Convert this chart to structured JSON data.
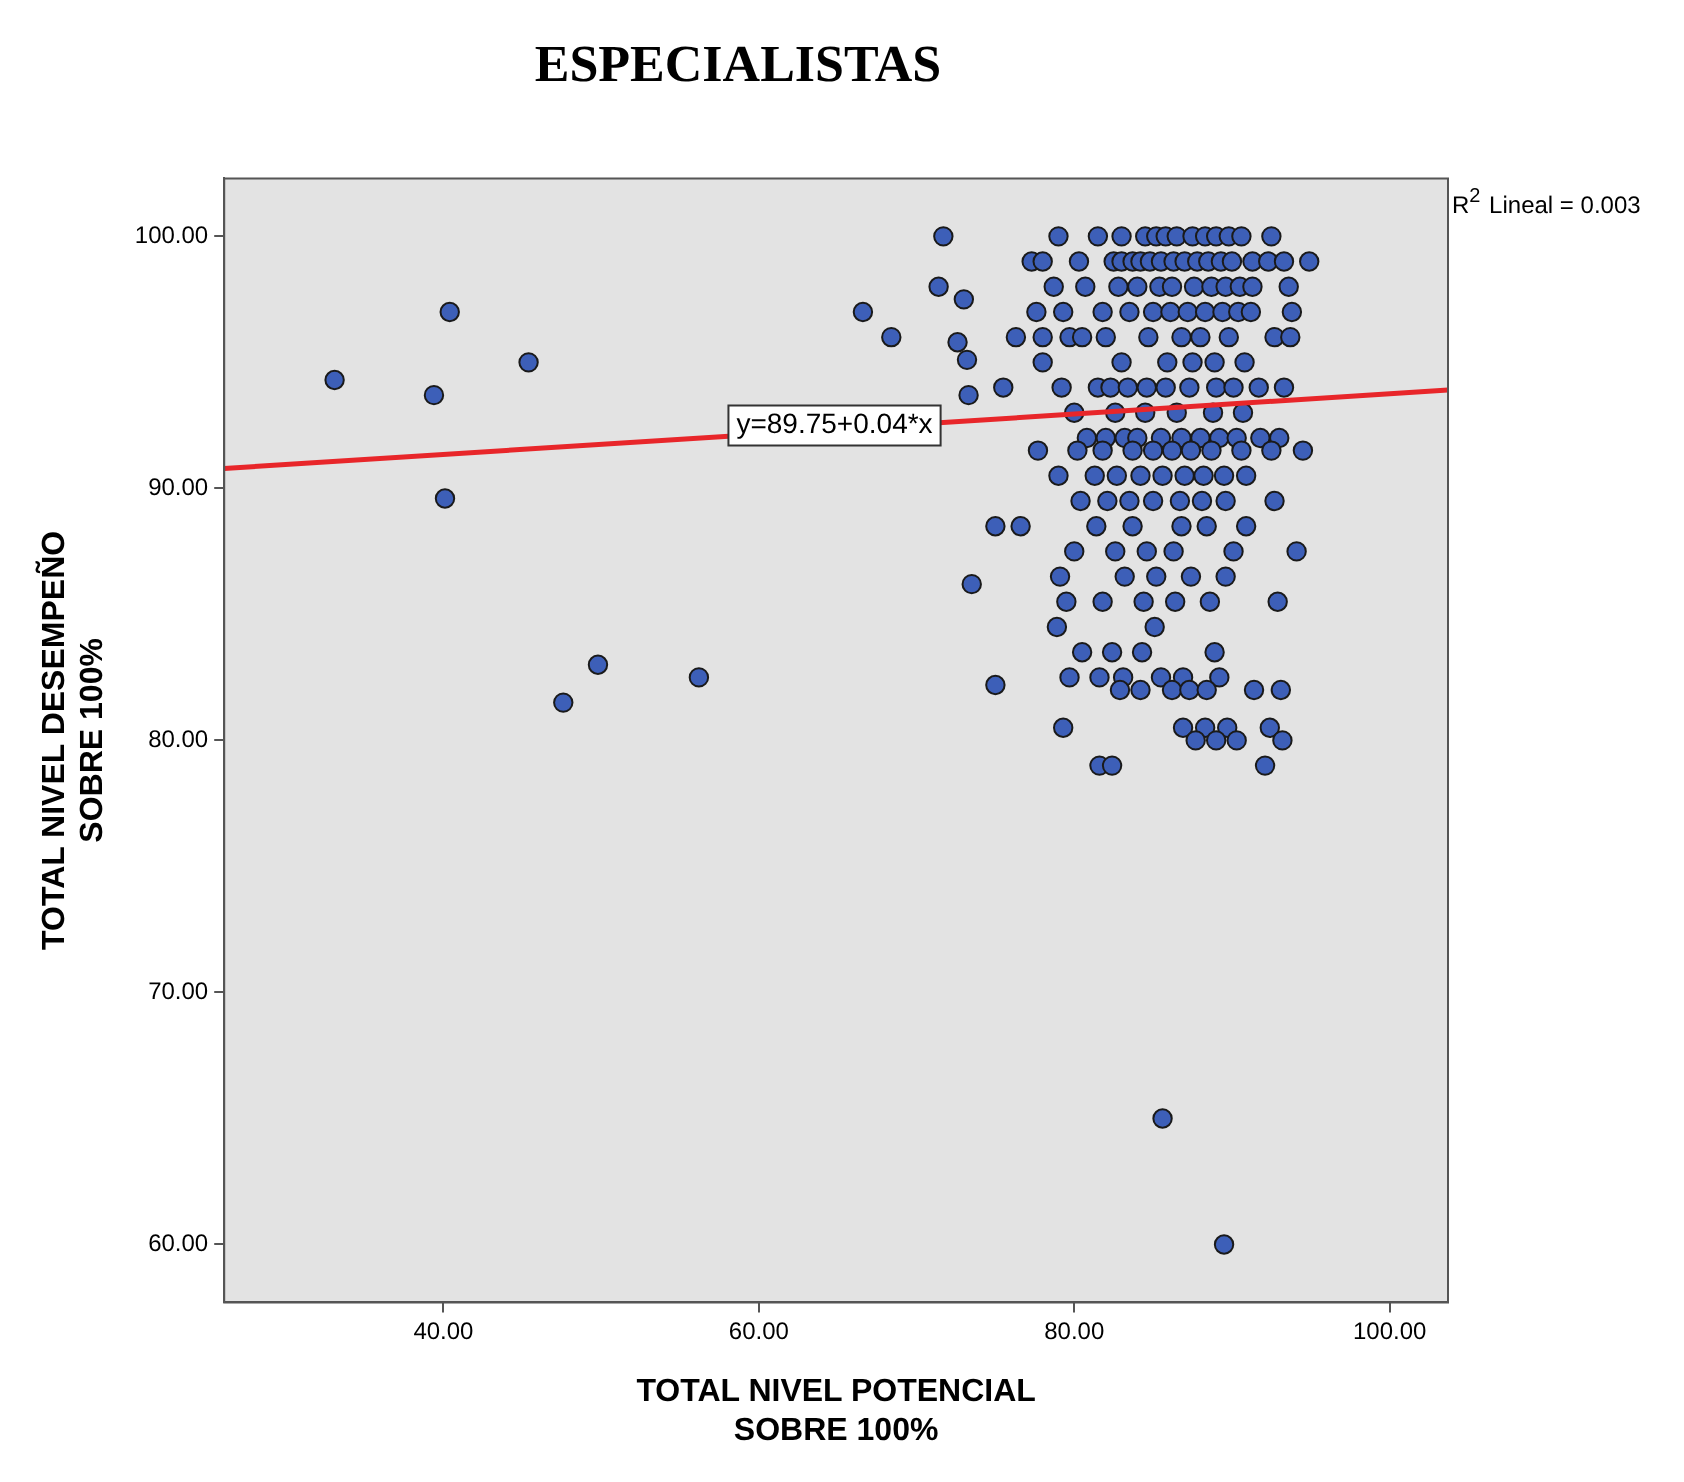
{
  "chart_data": {
    "type": "scatter",
    "title": "ESPECIALISTAS",
    "xlabel": "TOTAL NIVEL POTENCIAL\nSOBRE 100%",
    "ylabel": "TOTAL NIVEL DESEMPEÑO\nSOBRE 100%",
    "xlim": [
      26.1,
      103.7
    ],
    "ylim": [
      57.7,
      102.3
    ],
    "xticks": [
      {
        "value": 40,
        "label": "40.00"
      },
      {
        "value": 60,
        "label": "60.00"
      },
      {
        "value": 80,
        "label": "80.00"
      },
      {
        "value": 100,
        "label": "100.00"
      }
    ],
    "yticks": [
      {
        "value": 60,
        "label": "60.00"
      },
      {
        "value": 70,
        "label": "70.00"
      },
      {
        "value": 80,
        "label": "80.00"
      },
      {
        "value": 90,
        "label": "90.00"
      },
      {
        "value": 100,
        "label": "100.00"
      }
    ],
    "grid": false,
    "legend": false,
    "marker": "circle",
    "annotations": [
      {
        "text": "y=89.75+0.04*x",
        "x": 64.8,
        "y": 92.5
      },
      "R$^{2}$ Lineal = 0.003"
    ],
    "series": [
      {
        "color": "#3d5fb8",
        "x": [
          33.1,
          39.4,
          40.4,
          40.1,
          45.4,
          47.6,
          49.8,
          56.2,
          66.6,
          68.4,
          71.7,
          71.4,
          73.0,
          72.6,
          73.2,
          73.3,
          75.0,
          73.5,
          75.0,
          76.6,
          85.6,
          89.5,
          79,
          81.5,
          83,
          84.5,
          85.2,
          85.8,
          86.5,
          87.5,
          88.3,
          89,
          89.8,
          90.6,
          92.5,
          77.3,
          78,
          80.3,
          82.5,
          83,
          83.7,
          84.2,
          84.8,
          85.5,
          86.3,
          87,
          87.8,
          88.5,
          89.3,
          90,
          91.3,
          92.3,
          93.3,
          94.9,
          78.7,
          80.7,
          82.8,
          84,
          85.4,
          86.2,
          87.6,
          88.7,
          89.6,
          90.5,
          91.3,
          93.6,
          77.6,
          79.3,
          81.8,
          83.5,
          85,
          86.1,
          87.2,
          88.3,
          89.4,
          90.4,
          91.2,
          93.8,
          76.3,
          78,
          79.7,
          80.5,
          82,
          84.7,
          86.8,
          88,
          89.8,
          92.7,
          93.7,
          78,
          83,
          85.9,
          87.5,
          88.9,
          90.8,
          75.5,
          79.2,
          81.5,
          82.3,
          83.4,
          84.6,
          85.8,
          87.3,
          89,
          90.1,
          91.7,
          93.3,
          80,
          82.6,
          84.5,
          86.5,
          88.8,
          90.7,
          80.8,
          82,
          83.2,
          84,
          85.5,
          86.8,
          88,
          89.2,
          90.3,
          91.8,
          93,
          77.7,
          80.2,
          81.8,
          83.7,
          85,
          86.2,
          87.4,
          88.7,
          90.6,
          92.5,
          94.5,
          79,
          81.3,
          82.7,
          84.2,
          85.6,
          87,
          88.2,
          89.5,
          90.9,
          80.4,
          82.1,
          83.5,
          85,
          86.7,
          88.1,
          89.6,
          92.7,
          81.4,
          83.7,
          86.8,
          88.4,
          90.9,
          80,
          82.6,
          84.6,
          86.3,
          90.1,
          94.1,
          79.1,
          83.2,
          85.2,
          87.4,
          89.6,
          79.5,
          81.8,
          84.4,
          86.4,
          88.6,
          92.9,
          78.9,
          85.1,
          80.5,
          82.4,
          84.3,
          88.9,
          79.7,
          81.6,
          83.1,
          85.5,
          86.9,
          89.2,
          82.9,
          84.2,
          86.2,
          87.3,
          88.4,
          91.4,
          93.1,
          79.3,
          86.9,
          88.3,
          89.7,
          92.4,
          87.7,
          89,
          90.3,
          93.2,
          81.6,
          82.4,
          92.1
        ],
        "values": [
          94.3,
          93.7,
          97.0,
          89.6,
          95.0,
          81.5,
          83.0,
          82.5,
          97.0,
          96.0,
          100,
          98.0,
          97.5,
          95.8,
          95.1,
          93.7,
          88.5,
          86.2,
          82.2,
          88.5,
          65.0,
          60.0,
          100,
          100,
          100,
          100,
          100,
          100,
          100,
          100,
          100,
          100,
          100,
          100,
          100,
          99,
          99,
          99,
          99,
          99,
          99,
          99,
          99,
          99,
          99,
          99,
          99,
          99,
          99,
          99,
          99,
          99,
          99,
          99,
          98,
          98,
          98,
          98,
          98,
          98,
          98,
          98,
          98,
          98,
          98,
          98,
          97,
          97,
          97,
          97,
          97,
          97,
          97,
          97,
          97,
          97,
          97,
          97,
          96,
          96,
          96,
          96,
          96,
          96,
          96,
          96,
          96,
          96,
          96,
          95,
          95,
          95,
          95,
          95,
          95,
          94,
          94,
          94,
          94,
          94,
          94,
          94,
          94,
          94,
          94,
          94,
          94,
          93,
          93,
          93,
          93,
          93,
          93,
          92,
          92,
          92,
          92,
          92,
          92,
          92,
          92,
          92,
          92,
          92,
          91.5,
          91.5,
          91.5,
          91.5,
          91.5,
          91.5,
          91.5,
          91.5,
          91.5,
          91.5,
          91.5,
          90.5,
          90.5,
          90.5,
          90.5,
          90.5,
          90.5,
          90.5,
          90.5,
          90.5,
          89.5,
          89.5,
          89.5,
          89.5,
          89.5,
          89.5,
          89.5,
          89.5,
          88.5,
          88.5,
          88.5,
          88.5,
          88.5,
          87.5,
          87.5,
          87.5,
          87.5,
          87.5,
          87.5,
          86.5,
          86.5,
          86.5,
          86.5,
          86.5,
          85.5,
          85.5,
          85.5,
          85.5,
          85.5,
          85.5,
          84.5,
          84.5,
          83.5,
          83.5,
          83.5,
          83.5,
          82.5,
          82.5,
          82.5,
          82.5,
          82.5,
          82.5,
          82,
          82,
          82,
          82,
          82,
          82,
          82,
          80.5,
          80.5,
          80.5,
          80.5,
          80.5,
          80,
          80,
          80,
          80,
          79,
          79,
          79
        ]
      },
      {
        "type": "line",
        "color": "#e8262a",
        "marker": "none",
        "x": [
          26.1,
          103.7
        ],
        "values": [
          90.79,
          93.9
        ]
      }
    ]
  }
}
